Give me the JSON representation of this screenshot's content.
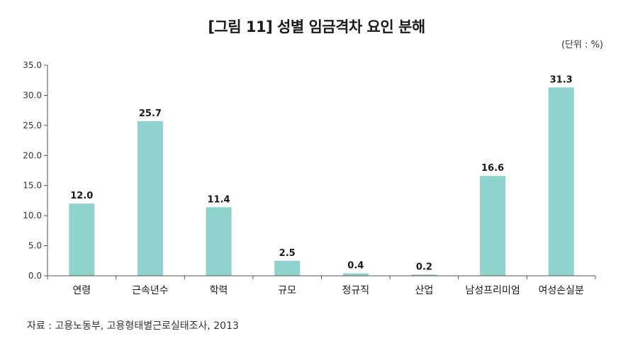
{
  "title": "[그림 11] 성별 임금격차 요인 분해",
  "unit": "(단위 : %)",
  "source": "자료 : 고용노동부, 고용형태별근로실태조사, 2013",
  "colors": {
    "bar": "#8fd3cd",
    "axis": "#555555",
    "text": "#222222"
  },
  "chart_data": {
    "type": "bar",
    "title": "[그림 11] 성별 임금격차 요인 분해",
    "xlabel": "",
    "ylabel": "",
    "ylim": [
      0,
      35
    ],
    "yticks": [
      "0.0",
      "5.0",
      "10.0",
      "15.0",
      "20.0",
      "25.0",
      "30.0",
      "35.0"
    ],
    "grid": false,
    "categories": [
      "연령",
      "근속년수",
      "학력",
      "규모",
      "정규직",
      "산업",
      "남성프리미엄",
      "여성손실분"
    ],
    "values": [
      12.0,
      25.7,
      11.4,
      2.5,
      0.4,
      0.2,
      16.6,
      31.3
    ],
    "value_labels": [
      "12.0",
      "25.7",
      "11.4",
      "2.5",
      "0.4",
      "0.2",
      "16.6",
      "31.3"
    ]
  }
}
